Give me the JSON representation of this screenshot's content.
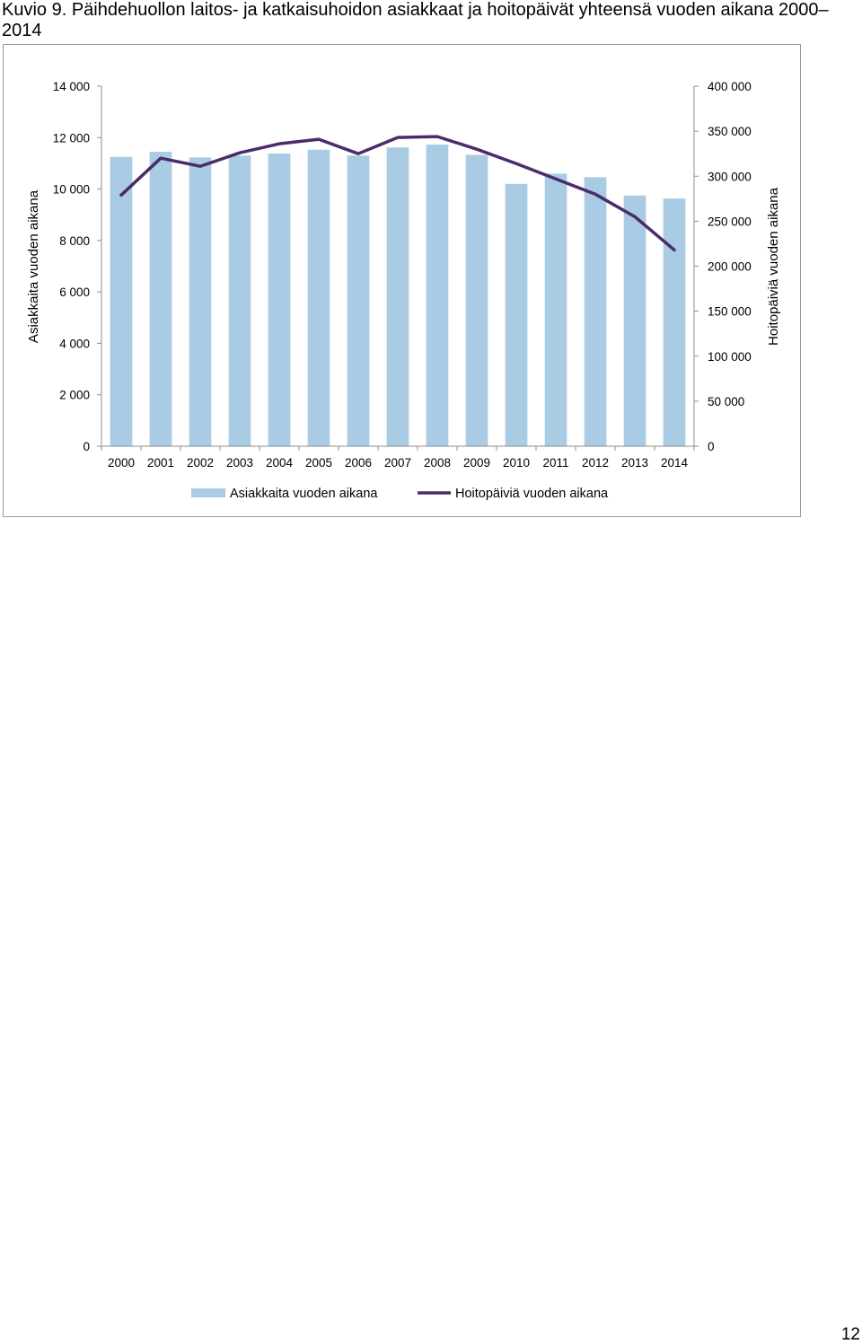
{
  "title": "Kuvio 9. Päihdehuollon laitos- ja katkaisuhoidon asiakkaat ja hoitopäivät yhteensä vuoden aikana 2000–2014",
  "page_number": "12",
  "chart_data": {
    "type": "bar",
    "categories": [
      "2000",
      "2001",
      "2002",
      "2003",
      "2004",
      "2005",
      "2006",
      "2007",
      "2008",
      "2009",
      "2010",
      "2011",
      "2012",
      "2013",
      "2014"
    ],
    "series": [
      {
        "name": "Asiakkaita vuoden aikana",
        "type": "bar",
        "axis": "left",
        "color": "#a9cbe4",
        "values": [
          11250,
          11450,
          11230,
          11300,
          11380,
          11530,
          11300,
          11620,
          11730,
          11330,
          10200,
          10600,
          10460,
          9750,
          9630
        ]
      },
      {
        "name": "Hoitopäiviä vuoden aikana",
        "type": "line",
        "axis": "right",
        "color": "#4b2c6b",
        "values": [
          279000,
          320000,
          311000,
          326000,
          336000,
          341000,
          325000,
          343000,
          344000,
          330000,
          314000,
          297000,
          280000,
          255000,
          218000
        ]
      }
    ],
    "y_left": {
      "label": "Asiakkaita vuoden aikana",
      "ylim": [
        0,
        14000
      ],
      "ticks": [
        0,
        2000,
        4000,
        6000,
        8000,
        10000,
        12000,
        14000
      ],
      "tick_labels": [
        "0",
        "2 000",
        "4 000",
        "6 000",
        "8 000",
        "10 000",
        "12 000",
        "14 000"
      ]
    },
    "y_right": {
      "label": "Hoitopäiviä vuoden aikana",
      "ylim": [
        0,
        400000
      ],
      "ticks": [
        0,
        50000,
        100000,
        150000,
        200000,
        250000,
        300000,
        350000,
        400000
      ],
      "tick_labels": [
        "0",
        "50 000",
        "100 000",
        "150 000",
        "200 000",
        "250 000",
        "300 000",
        "350 000",
        "400 000"
      ]
    },
    "grid": false,
    "legend": "bottom"
  }
}
